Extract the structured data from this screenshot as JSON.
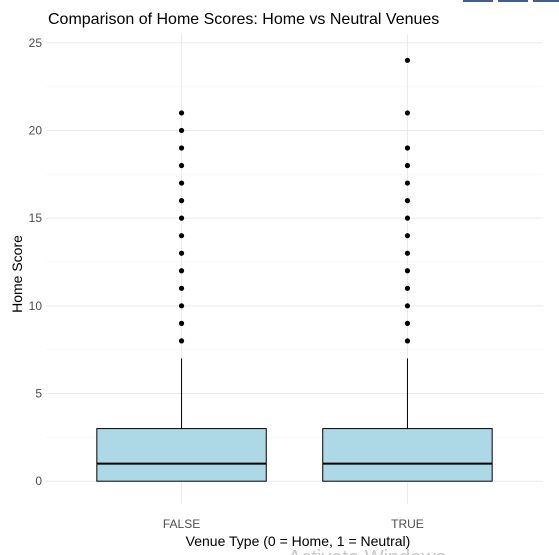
{
  "chart_data": {
    "type": "box",
    "title": "Comparison of Home Scores: Home vs Neutral Venues",
    "xlabel": "Venue Type (0 = Home, 1 = Neutral)",
    "ylabel": "Home Score",
    "ylim": [
      -1.3,
      25.5
    ],
    "yticks": [
      0,
      5,
      10,
      15,
      20,
      25
    ],
    "grid": true,
    "box_color": "#add8e6",
    "categories": [
      "FALSE",
      "TRUE"
    ],
    "boxes": [
      {
        "category": "FALSE",
        "q1": 0,
        "median": 1,
        "q3": 3,
        "whisker_low": 0,
        "whisker_high": 7,
        "outliers": [
          8,
          9,
          10,
          11,
          12,
          13,
          14,
          15,
          16,
          17,
          18,
          19,
          20,
          21
        ]
      },
      {
        "category": "TRUE",
        "q1": 0,
        "median": 1,
        "q3": 3,
        "whisker_low": 0,
        "whisker_high": 7,
        "outliers": [
          8,
          9,
          10,
          11,
          12,
          13,
          14,
          15,
          16,
          17,
          18,
          19,
          21,
          24
        ]
      }
    ]
  },
  "watermark": "Activate Windows"
}
